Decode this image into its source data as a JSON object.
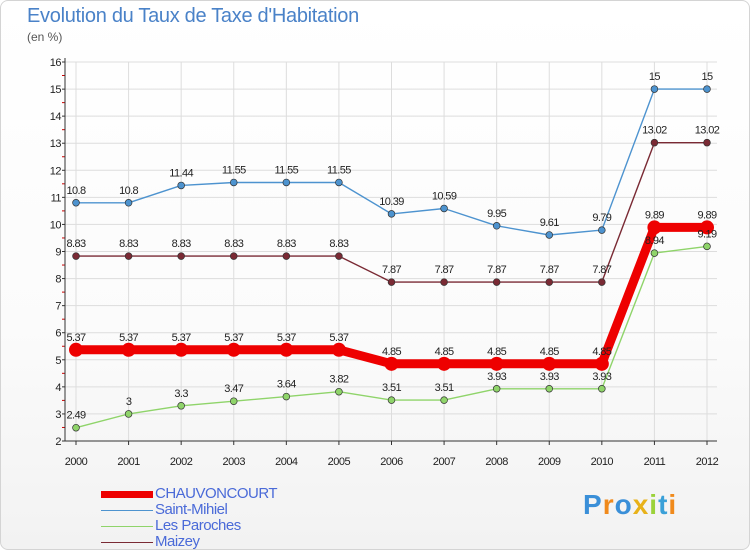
{
  "header": {
    "title": "Evolution du Taux de Taxe d'Habitation",
    "unit": "(en %)"
  },
  "logo_text": "Proxiti",
  "chart_data": {
    "type": "line",
    "title": "Evolution du Taux de Taxe d'Habitation",
    "ylabel": "(en %)",
    "xlabel": "",
    "categories": [
      "2000",
      "2001",
      "2002",
      "2003",
      "2004",
      "2005",
      "2006",
      "2007",
      "2008",
      "2009",
      "2010",
      "2011",
      "2012"
    ],
    "ylim": [
      2,
      16
    ],
    "yticks": [
      "2",
      "3",
      "4",
      "5",
      "6",
      "7",
      "8",
      "9",
      "10",
      "11",
      "12",
      "13",
      "14",
      "15",
      "16"
    ],
    "grid": true,
    "legend_position": "bottom-left",
    "series": [
      {
        "name": "Saint-Mihiel",
        "color": "#4d93cf",
        "values": [
          10.8,
          10.8,
          11.44,
          11.55,
          11.55,
          11.55,
          10.39,
          10.59,
          9.95,
          9.61,
          9.79,
          15,
          15
        ],
        "labels": [
          "10.8",
          "10.8",
          "11.44",
          "11.55",
          "11.55",
          "11.55",
          "10.39",
          "10.59",
          "9.95",
          "9.61",
          "9.79",
          "15",
          "15"
        ]
      },
      {
        "name": "Maizey",
        "color": "#7a2a34",
        "values": [
          8.83,
          8.83,
          8.83,
          8.83,
          8.83,
          8.83,
          7.87,
          7.87,
          7.87,
          7.87,
          7.87,
          13.02,
          13.02
        ],
        "labels": [
          "8.83",
          "8.83",
          "8.83",
          "8.83",
          "8.83",
          "8.83",
          "7.87",
          "7.87",
          "7.87",
          "7.87",
          "7.87",
          "13.02",
          "13.02"
        ]
      },
      {
        "name": "Les Paroches",
        "color": "#8fd46a",
        "values": [
          2.49,
          3,
          3.3,
          3.47,
          3.64,
          3.82,
          3.51,
          3.51,
          3.93,
          3.93,
          3.93,
          8.94,
          9.19
        ],
        "labels": [
          "2.49",
          "3",
          "3.3",
          "3.47",
          "3.64",
          "3.82",
          "3.51",
          "3.51",
          "3.93",
          "3.93",
          "3.93",
          "8.94",
          "9.19"
        ]
      },
      {
        "name": "CHAUVONCOURT",
        "color": "#ee0000",
        "values": [
          5.37,
          5.37,
          5.37,
          5.37,
          5.37,
          5.37,
          4.85,
          4.85,
          4.85,
          4.85,
          4.85,
          9.89,
          9.89
        ],
        "labels": [
          "5.37",
          "5.37",
          "5.37",
          "5.37",
          "5.37",
          "5.37",
          "4.85",
          "4.85",
          "4.85",
          "4.85",
          "4.85",
          "9.89",
          "9.89"
        ]
      }
    ],
    "legend": [
      "CHAUVONCOURT",
      "Saint-Mihiel",
      "Les Paroches",
      "Maizey"
    ]
  }
}
